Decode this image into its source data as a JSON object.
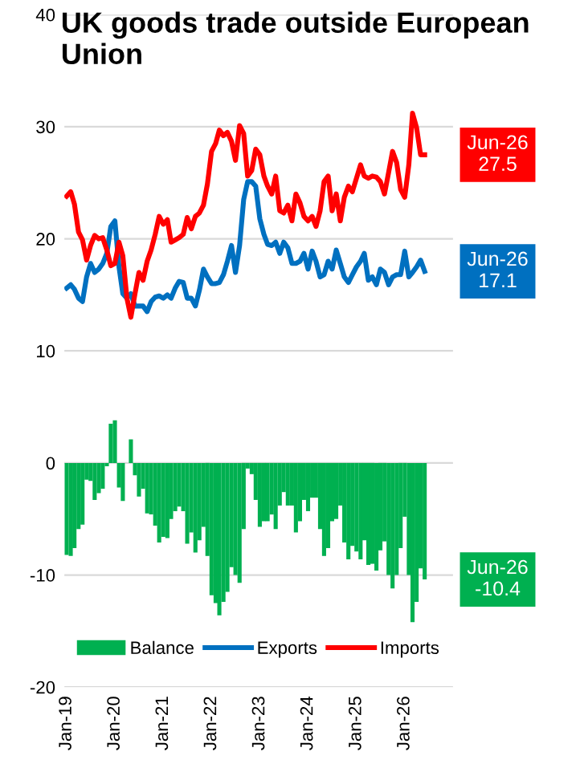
{
  "chart_data": {
    "type": "line",
    "title": "UK goods trade outside European Union",
    "x": [
      "2019-01",
      "2019-02",
      "2019-03",
      "2019-04",
      "2019-05",
      "2019-06",
      "2019-07",
      "2019-08",
      "2019-09",
      "2019-10",
      "2019-11",
      "2019-12",
      "2020-01",
      "2020-02",
      "2020-03",
      "2020-04",
      "2020-05",
      "2020-06",
      "2020-07",
      "2020-08",
      "2020-09",
      "2020-10",
      "2020-11",
      "2020-12",
      "2021-01",
      "2021-02",
      "2021-03",
      "2021-04",
      "2021-05",
      "2021-06",
      "2021-07",
      "2021-08",
      "2021-09",
      "2021-10",
      "2021-11",
      "2021-12",
      "2022-01",
      "2022-02",
      "2022-03",
      "2022-04",
      "2022-05",
      "2022-06",
      "2022-07",
      "2022-08",
      "2022-09",
      "2022-10",
      "2022-11",
      "2022-12",
      "2023-01",
      "2023-02",
      "2023-03",
      "2023-04",
      "2023-05",
      "2023-06",
      "2023-07",
      "2023-08",
      "2023-09",
      "2023-10",
      "2023-11",
      "2023-12",
      "2024-01",
      "2024-02",
      "2024-03",
      "2024-04",
      "2024-05",
      "2024-06",
      "2024-07",
      "2024-08",
      "2024-09",
      "2024-10",
      "2024-11",
      "2024-12",
      "2025-01",
      "2025-02",
      "2025-03",
      "2025-04",
      "2025-05",
      "2025-06",
      "2025-07",
      "2025-08",
      "2025-09",
      "2025-10",
      "2025-11",
      "2025-12",
      "2026-01",
      "2026-02",
      "2026-03",
      "2026-04",
      "2026-05",
      "2026-06"
    ],
    "series": [
      {
        "name": "Balance",
        "type": "bar",
        "color": "#00b050",
        "values": [
          -8.2,
          -8.3,
          -7.6,
          -5.9,
          -5.5,
          -1.5,
          -1.6,
          -3.3,
          -2.7,
          -2.3,
          -0.3,
          3.5,
          3.8,
          -2.2,
          -3.4,
          0.0,
          2.1,
          -1.1,
          -3.0,
          -2.3,
          -4.5,
          -4.6,
          -5.6,
          -7.1,
          -6.6,
          -6.7,
          -5.0,
          -4.3,
          -3.9,
          -4.3,
          -7.2,
          -6.2,
          -8.0,
          -6.9,
          -5.7,
          -8.3,
          -11.8,
          -12.5,
          -13.6,
          -12.4,
          -11.5,
          -9.3,
          -10.0,
          -10.7,
          -5.9,
          -0.5,
          -1.0,
          -3.3,
          -5.7,
          -5.2,
          -5.2,
          -4.6,
          -5.9,
          -3.8,
          -2.6,
          -3.8,
          -3.8,
          -6.2,
          -5.2,
          -3.3,
          -4.3,
          -3.1,
          -3.1,
          -5.9,
          -8.3,
          -7.6,
          -5.2,
          -5.0,
          -3.8,
          -7.1,
          -8.6,
          -7.4,
          -7.9,
          -8.6,
          -6.9,
          -9.1,
          -9.0,
          -9.6,
          -7.8,
          -7.0,
          -10.0,
          -11.2,
          -10.0,
          -7.6,
          -4.8,
          -10.0,
          -14.2,
          -12.4,
          -9.4,
          -10.4
        ]
      },
      {
        "name": "Exports",
        "color": "#0070c0",
        "values": [
          15.6,
          15.9,
          15.5,
          14.7,
          14.4,
          16.6,
          17.8,
          17.0,
          17.3,
          17.8,
          18.7,
          21.1,
          21.6,
          17.5,
          15.1,
          14.7,
          15.1,
          14.0,
          14.0,
          14.0,
          13.5,
          14.4,
          14.8,
          14.9,
          14.7,
          15.0,
          14.7,
          15.6,
          16.2,
          16.1,
          14.7,
          14.7,
          14.0,
          15.4,
          17.3,
          16.6,
          16.0,
          16.0,
          16.1,
          16.8,
          18.0,
          19.4,
          17.0,
          19.4,
          23.5,
          25.1,
          25.1,
          24.7,
          21.8,
          20.4,
          19.5,
          19.4,
          19.7,
          18.7,
          19.7,
          19.2,
          17.8,
          17.8,
          18.0,
          18.7,
          17.3,
          18.9,
          18.0,
          16.6,
          16.8,
          18.0,
          17.3,
          19.0,
          17.8,
          16.6,
          16.1,
          16.8,
          17.5,
          18.0,
          18.7,
          16.3,
          16.6,
          15.9,
          17.3,
          17.0,
          15.9,
          16.6,
          16.8,
          16.8,
          18.9,
          16.6,
          17.0,
          17.5,
          18.1,
          17.1
        ]
      },
      {
        "name": "Imports",
        "color": "#ff0000",
        "values": [
          23.8,
          24.2,
          23.1,
          20.6,
          19.9,
          18.1,
          19.4,
          20.3,
          20.0,
          20.1,
          19.0,
          17.6,
          17.8,
          19.7,
          18.5,
          14.7,
          13.0,
          15.1,
          17.0,
          16.3,
          18.0,
          19.0,
          20.4,
          22.0,
          21.3,
          21.7,
          19.7,
          19.9,
          20.1,
          20.4,
          21.9,
          20.9,
          22.0,
          22.3,
          23.0,
          24.9,
          27.8,
          28.5,
          29.7,
          29.2,
          29.5,
          28.7,
          27.0,
          30.1,
          29.4,
          25.6,
          26.1,
          28.0,
          27.5,
          25.6,
          24.7,
          24.0,
          25.6,
          22.5,
          22.3,
          23.0,
          21.6,
          24.0,
          23.2,
          22.0,
          21.6,
          22.0,
          21.1,
          22.5,
          25.1,
          25.6,
          22.5,
          24.0,
          21.6,
          23.7,
          24.7,
          24.2,
          25.4,
          26.6,
          25.6,
          25.4,
          25.6,
          25.5,
          25.1,
          24.0,
          25.9,
          27.8,
          26.8,
          24.4,
          23.7,
          26.6,
          31.2,
          29.9,
          27.5,
          27.5
        ]
      }
    ],
    "xlim": [
      "2018-12-15",
      "2027-01-01"
    ],
    "xticks": [
      {
        "value": "2019-01",
        "label": "Jan-19"
      },
      {
        "value": "2020-01",
        "label": "Jan-20"
      },
      {
        "value": "2021-01",
        "label": "Jan-21"
      },
      {
        "value": "2022-01",
        "label": "Jan-22"
      },
      {
        "value": "2023-01",
        "label": "Jan-23"
      },
      {
        "value": "2024-01",
        "label": "Jan-24"
      },
      {
        "value": "2025-01",
        "label": "Jan-25"
      },
      {
        "value": "2026-01",
        "label": "Jan-26"
      }
    ],
    "ylim": [
      -20,
      40
    ],
    "yticks": [
      -20,
      -10,
      0,
      10,
      20,
      30,
      40
    ],
    "grid": "y",
    "legend": "bottom",
    "annotations": [
      {
        "text": "Jun-26\n27.5",
        "x": "2026-06",
        "y": 27.5
      },
      {
        "text": "Jun-26\n17.1",
        "x": "2026-06",
        "y": 17.1
      },
      {
        "text": "Jun-26\n-10.4",
        "x": "2026-06",
        "y": -10.4
      }
    ]
  }
}
